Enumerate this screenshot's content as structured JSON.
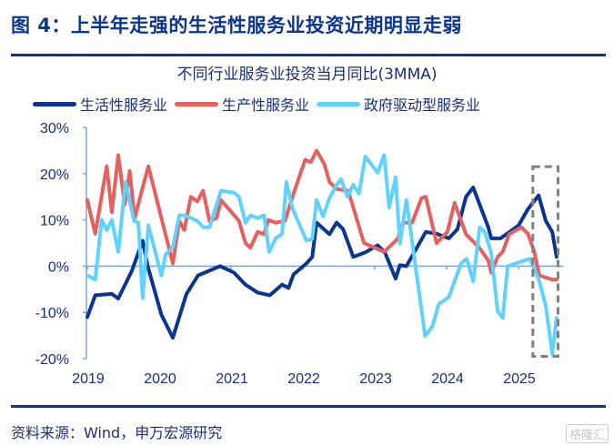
{
  "header": {
    "title": "图 4：上半年走强的生活性服务业投资近期明显走弱"
  },
  "footer": {
    "source": "资料来源：Wind，申万宏源研究",
    "watermark": "格隆汇"
  },
  "chart_data": {
    "type": "line",
    "title": "不同行业服务业投资当月同比(3MMA)",
    "xlabel": "",
    "ylabel": "",
    "xlim": [
      2019,
      2025.6
    ],
    "ylim": [
      -20,
      30
    ],
    "yticks": [
      30,
      20,
      10,
      0,
      -10,
      -20
    ],
    "ytick_labels": [
      "30%",
      "20%",
      "10%",
      "0%",
      "-10%",
      "-20%"
    ],
    "xticks": [
      2019,
      2020,
      2021,
      2022,
      2023,
      2024,
      2025
    ],
    "xtick_labels": [
      "2019",
      "2020",
      "2021",
      "2022",
      "2023",
      "2024",
      "2025"
    ],
    "legend": "top",
    "highlight_box": {
      "x": [
        2025.2,
        2025.55
      ],
      "y": [
        -19.5,
        21.5
      ],
      "style": "dashed"
    },
    "series": [
      {
        "name": "生活性服务业",
        "color": "#0a3591",
        "points": [
          [
            2019.0,
            -11
          ],
          [
            2019.11,
            -6.3
          ],
          [
            2019.34,
            -6
          ],
          [
            2019.43,
            -7
          ],
          [
            2019.62,
            -1
          ],
          [
            2019.77,
            5.5
          ],
          [
            2019.84,
            0
          ],
          [
            2020.03,
            -10.5
          ],
          [
            2020.19,
            -15.5
          ],
          [
            2020.38,
            -6
          ],
          [
            2020.54,
            -2
          ],
          [
            2020.85,
            0
          ],
          [
            2021.04,
            -1.4
          ],
          [
            2021.2,
            -4
          ],
          [
            2021.37,
            -5.7
          ],
          [
            2021.54,
            -6.3
          ],
          [
            2021.71,
            -4
          ],
          [
            2021.8,
            -4.7
          ],
          [
            2021.87,
            -1.8
          ],
          [
            2022.05,
            0.6
          ],
          [
            2022.13,
            2
          ],
          [
            2022.19,
            9.4
          ],
          [
            2022.37,
            6.9
          ],
          [
            2022.47,
            9.4
          ],
          [
            2022.56,
            8
          ],
          [
            2022.7,
            2
          ],
          [
            2022.87,
            3
          ],
          [
            2023.04,
            4.5
          ],
          [
            2023.14,
            3
          ],
          [
            2023.29,
            -2.7
          ],
          [
            2023.35,
            0.2
          ],
          [
            2023.44,
            0
          ],
          [
            2023.71,
            7.4
          ],
          [
            2023.86,
            7
          ],
          [
            2024.03,
            6
          ],
          [
            2024.15,
            8
          ],
          [
            2024.27,
            15
          ],
          [
            2024.37,
            17
          ],
          [
            2024.58,
            8.4
          ],
          [
            2024.62,
            6
          ],
          [
            2024.75,
            6
          ],
          [
            2024.84,
            7
          ],
          [
            2025.0,
            8.8
          ],
          [
            2025.13,
            12.3
          ],
          [
            2025.28,
            15.3
          ],
          [
            2025.38,
            9.8
          ],
          [
            2025.47,
            7.4
          ],
          [
            2025.53,
            2
          ]
        ]
      },
      {
        "name": "生产性服务业",
        "color": "#e5605f",
        "points": [
          [
            2019.0,
            14.3
          ],
          [
            2019.11,
            7
          ],
          [
            2019.27,
            21.6
          ],
          [
            2019.34,
            11.7
          ],
          [
            2019.43,
            24
          ],
          [
            2019.52,
            13.3
          ],
          [
            2019.59,
            20.6
          ],
          [
            2019.66,
            10.4
          ],
          [
            2019.77,
            17
          ],
          [
            2019.85,
            21.6
          ],
          [
            2020.19,
            0.6
          ],
          [
            2020.28,
            9.8
          ],
          [
            2020.35,
            7.8
          ],
          [
            2020.44,
            15
          ],
          [
            2020.53,
            14
          ],
          [
            2020.61,
            16.3
          ],
          [
            2020.7,
            9.8
          ],
          [
            2020.8,
            10.4
          ],
          [
            2020.86,
            14.3
          ],
          [
            2021.11,
            9.8
          ],
          [
            2021.2,
            5
          ],
          [
            2021.27,
            4
          ],
          [
            2021.37,
            7.4
          ],
          [
            2021.46,
            6.9
          ],
          [
            2021.52,
            10
          ],
          [
            2021.62,
            9.4
          ],
          [
            2021.75,
            9.8
          ],
          [
            2021.87,
            15.7
          ],
          [
            2022.03,
            23
          ],
          [
            2022.11,
            22.5
          ],
          [
            2022.19,
            25
          ],
          [
            2022.3,
            22
          ],
          [
            2022.37,
            18.2
          ],
          [
            2022.47,
            16.7
          ],
          [
            2022.63,
            16.3
          ],
          [
            2022.85,
            5
          ],
          [
            2023.13,
            3.1
          ],
          [
            2023.25,
            4.9
          ],
          [
            2023.32,
            5.9
          ],
          [
            2023.39,
            9.4
          ],
          [
            2023.52,
            9.4
          ],
          [
            2023.65,
            14.7
          ],
          [
            2023.71,
            15
          ],
          [
            2023.86,
            5
          ],
          [
            2024.01,
            7.4
          ],
          [
            2024.11,
            13.7
          ],
          [
            2024.27,
            6.9
          ],
          [
            2024.46,
            3.9
          ],
          [
            2024.58,
            1.2
          ],
          [
            2024.62,
            -1.4
          ],
          [
            2024.71,
            2
          ],
          [
            2024.78,
            3.1
          ],
          [
            2024.87,
            6.9
          ],
          [
            2025.04,
            8.4
          ],
          [
            2025.13,
            7
          ],
          [
            2025.22,
            3.1
          ],
          [
            2025.29,
            -2
          ],
          [
            2025.47,
            -2.9
          ],
          [
            2025.53,
            -2.9
          ]
        ]
      },
      {
        "name": "政府驱动型服务业",
        "color": "#5fd3fb",
        "points": [
          [
            2019.0,
            -2
          ],
          [
            2019.11,
            -2.9
          ],
          [
            2019.2,
            10
          ],
          [
            2019.27,
            7.8
          ],
          [
            2019.34,
            10
          ],
          [
            2019.43,
            3.1
          ],
          [
            2019.53,
            18.2
          ],
          [
            2019.65,
            9.8
          ],
          [
            2019.71,
            9.4
          ],
          [
            2019.77,
            -6.9
          ],
          [
            2019.85,
            8.8
          ],
          [
            2020.03,
            -2
          ],
          [
            2020.09,
            2.5
          ],
          [
            2020.19,
            4.1
          ],
          [
            2020.28,
            11
          ],
          [
            2020.35,
            11
          ],
          [
            2020.53,
            9.8
          ],
          [
            2020.61,
            8.4
          ],
          [
            2020.7,
            8.4
          ],
          [
            2020.86,
            16.3
          ],
          [
            2021.04,
            15.9
          ],
          [
            2021.11,
            15
          ],
          [
            2021.2,
            9.4
          ],
          [
            2021.27,
            11
          ],
          [
            2021.37,
            10.4
          ],
          [
            2021.46,
            11
          ],
          [
            2021.53,
            3.1
          ],
          [
            2021.62,
            6
          ],
          [
            2021.71,
            7
          ],
          [
            2021.77,
            18.2
          ],
          [
            2021.86,
            12.3
          ],
          [
            2022.05,
            5.5
          ],
          [
            2022.13,
            5.9
          ],
          [
            2022.19,
            14.3
          ],
          [
            2022.28,
            10.8
          ],
          [
            2022.37,
            14.7
          ],
          [
            2022.47,
            17.6
          ],
          [
            2022.53,
            18.8
          ],
          [
            2022.62,
            15
          ],
          [
            2022.7,
            17.6
          ],
          [
            2022.78,
            15.7
          ],
          [
            2022.87,
            23.7
          ],
          [
            2023.04,
            20.2
          ],
          [
            2023.13,
            24
          ],
          [
            2023.2,
            12.7
          ],
          [
            2023.29,
            19.2
          ],
          [
            2023.35,
            4.9
          ],
          [
            2023.44,
            14.3
          ],
          [
            2023.7,
            -15.1
          ],
          [
            2023.8,
            -13.1
          ],
          [
            2023.89,
            -8.2
          ],
          [
            2024.03,
            -6.7
          ],
          [
            2024.2,
            0.6
          ],
          [
            2024.28,
            1.6
          ],
          [
            2024.37,
            -3.3
          ],
          [
            2024.46,
            8.4
          ],
          [
            2024.53,
            7.4
          ],
          [
            2024.62,
            2.9
          ],
          [
            2024.71,
            -9.8
          ],
          [
            2024.78,
            -11.2
          ],
          [
            2024.85,
            0
          ],
          [
            2025.04,
            1
          ],
          [
            2025.16,
            1.6
          ],
          [
            2025.29,
            -3.3
          ],
          [
            2025.38,
            -8.6
          ],
          [
            2025.47,
            -19
          ],
          [
            2025.53,
            -11.2
          ]
        ]
      }
    ]
  }
}
